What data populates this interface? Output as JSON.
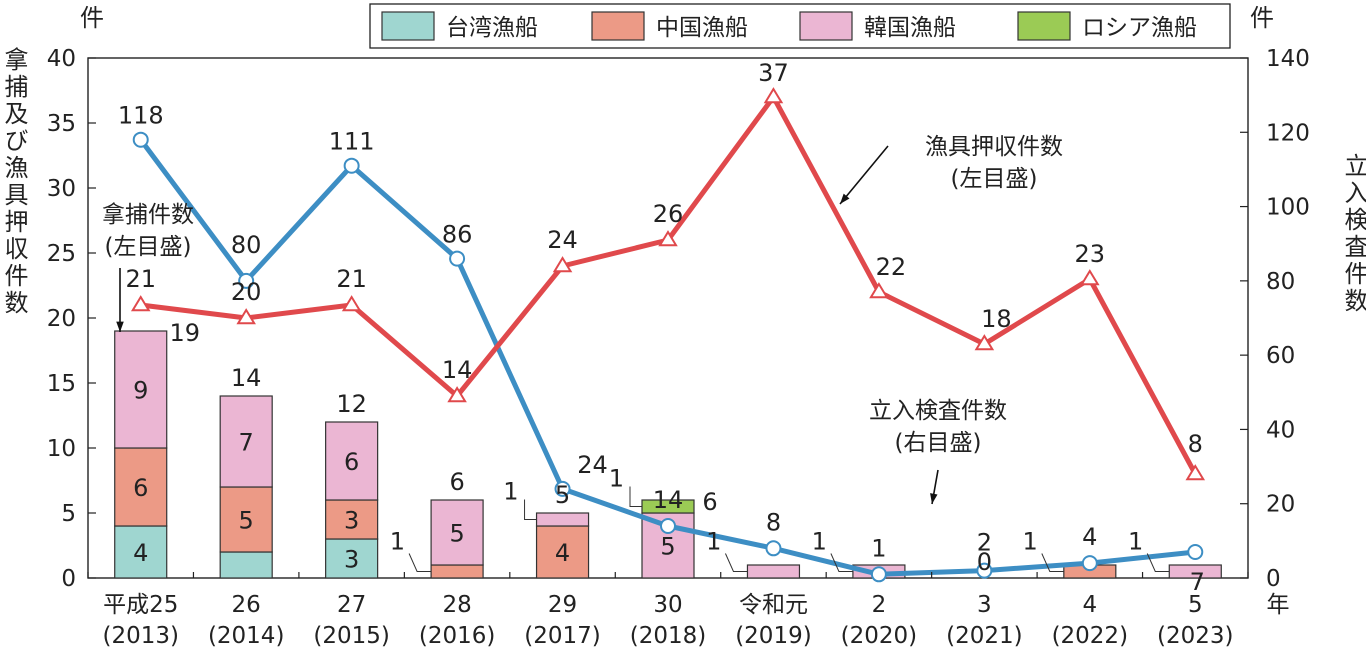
{
  "chart_data": {
    "type": "bar+line",
    "categories": [
      "平成25",
      "26",
      "27",
      "28",
      "29",
      "30",
      "令和元",
      "2",
      "3",
      "4",
      "5"
    ],
    "category_years": [
      "(2013)",
      "(2014)",
      "(2015)",
      "(2016)",
      "(2017)",
      "(2018)",
      "(2019)",
      "(2020)",
      "(2021)",
      "(2022)",
      "(2023)"
    ],
    "x_unit": "年",
    "left_axis": {
      "unit": "件",
      "label": "拿捕及び漁具押収件数",
      "ylim": [
        0,
        40
      ],
      "ticks": [
        0,
        5,
        10,
        15,
        20,
        25,
        30,
        35,
        40
      ]
    },
    "right_axis": {
      "unit": "件",
      "label": "立入検査件数",
      "ylim": [
        0,
        140
      ],
      "ticks": [
        0,
        20,
        40,
        60,
        80,
        100,
        120,
        140
      ]
    },
    "bar_series": [
      {
        "name": "台湾漁船",
        "color": "#9fd6d0",
        "values": [
          4,
          2,
          3,
          0,
          0,
          0,
          0,
          0,
          0,
          0,
          0
        ]
      },
      {
        "name": "中国漁船",
        "color": "#ec9a86",
        "values": [
          6,
          5,
          3,
          1,
          4,
          0,
          0,
          0,
          0,
          1,
          0
        ]
      },
      {
        "name": "韓国漁船",
        "color": "#ebb6d3",
        "values": [
          9,
          7,
          6,
          5,
          1,
          5,
          1,
          1,
          0,
          0,
          1
        ]
      },
      {
        "name": "ロシア漁船",
        "color": "#9bcb55",
        "values": [
          0,
          0,
          0,
          0,
          0,
          1,
          0,
          0,
          0,
          0,
          0
        ]
      }
    ],
    "bar_totals": [
      19,
      14,
      12,
      6,
      5,
      6,
      1,
      1,
      0,
      1,
      1
    ],
    "line_series": [
      {
        "name": "漁具押収件数",
        "axis": "left",
        "color": "#e0494c",
        "marker": "triangle",
        "values": [
          21,
          20,
          21,
          14,
          24,
          26,
          37,
          22,
          18,
          23,
          8
        ]
      },
      {
        "name": "立入検査件数",
        "axis": "right",
        "color": "#3d8ec4",
        "marker": "circle",
        "values": [
          118,
          80,
          111,
          86,
          24,
          14,
          8,
          1,
          2,
          4,
          7
        ]
      }
    ],
    "annotations": [
      {
        "lines": [
          "拿捕件数",
          "(左目盛)"
        ]
      },
      {
        "lines": [
          "漁具押収件数",
          "(左目盛)"
        ]
      },
      {
        "lines": [
          "立入検査件数",
          "(右目盛)"
        ]
      }
    ],
    "legend_position": "top"
  }
}
